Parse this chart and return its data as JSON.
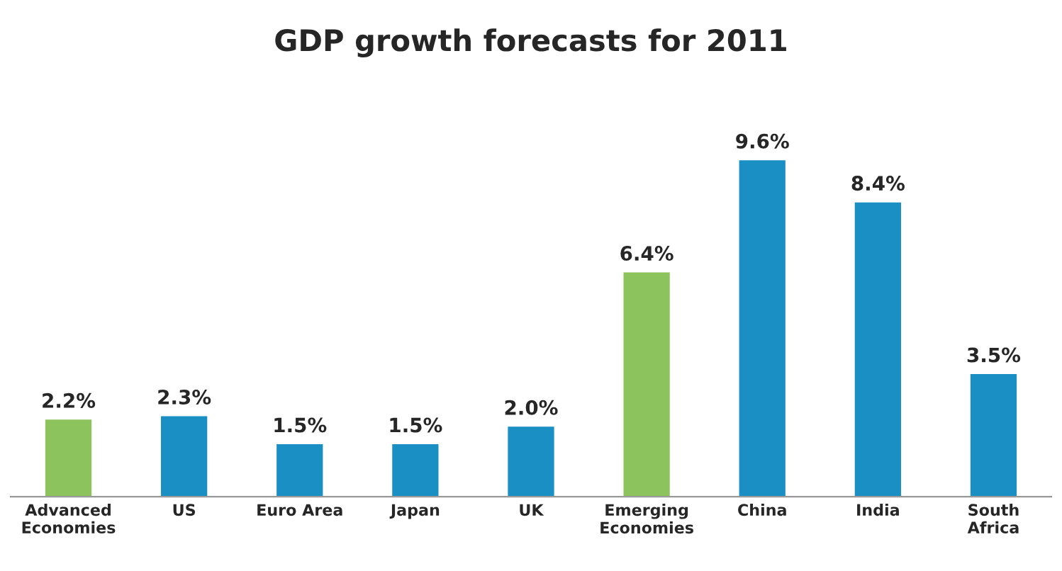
{
  "chart_data": {
    "type": "bar",
    "title": "GDP growth forecasts for 2011",
    "categories": [
      "Advanced\nEconomies",
      "US",
      "Euro Area",
      "Japan",
      "UK",
      "Emerging\nEconomies",
      "China",
      "India",
      "South\nAfrica"
    ],
    "values": [
      2.2,
      2.3,
      1.5,
      1.5,
      2.0,
      6.4,
      9.6,
      8.4,
      3.5
    ],
    "colors": [
      "#8cc35c",
      "#1a8fc4",
      "#1a8fc4",
      "#1a8fc4",
      "#1a8fc4",
      "#8cc35c",
      "#1a8fc4",
      "#1a8fc4",
      "#1a8fc4"
    ],
    "value_labels": [
      "2.2%",
      "2.3%",
      "1.5%",
      "1.5%",
      "2.0%",
      "6.4%",
      "9.6%",
      "8.4%",
      "3.5%"
    ],
    "tick_labels": "x",
    "grid": false,
    "legend": false
  }
}
